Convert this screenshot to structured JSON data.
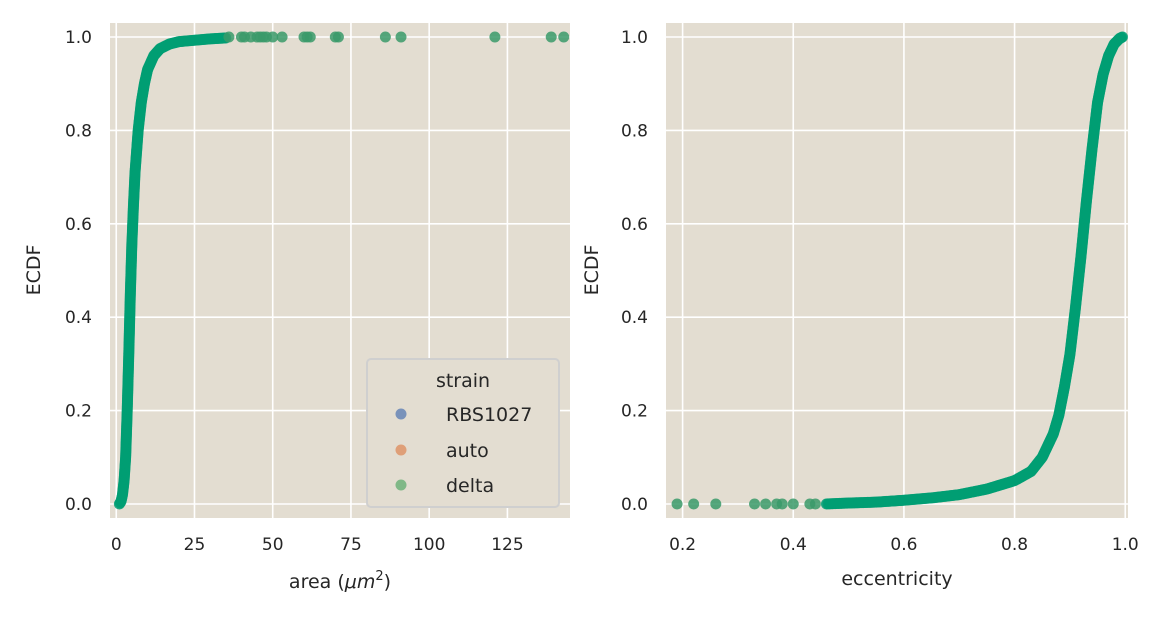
{
  "chart_data": [
    {
      "type": "scatter",
      "name": "area-ecdf",
      "xlabel": "area (",
      "xlabel_unit": "μm",
      "xlabel_sup": "2",
      "xlabel_close": ")",
      "ylabel": "ECDF",
      "xlim": [
        -2,
        145
      ],
      "ylim": [
        -0.03,
        1.03
      ],
      "xticks": [
        "0",
        "25",
        "50",
        "75",
        "100",
        "125"
      ],
      "xtick_values": [
        0,
        25,
        50,
        75,
        100,
        125
      ],
      "yticks": [
        "0.0",
        "0.2",
        "0.4",
        "0.6",
        "0.8",
        "1.0"
      ],
      "ytick_values": [
        0,
        0.2,
        0.4,
        0.6,
        0.8,
        1.0
      ],
      "grid": true,
      "legend": {
        "title": "strain",
        "placement": "lower-right",
        "entries": [
          {
            "label": "RBS1027",
            "color": "#4c72b0"
          },
          {
            "label": "auto",
            "color": "#dd8452"
          },
          {
            "label": "delta",
            "color": "#55a868"
          }
        ]
      },
      "curve": {
        "color": "#009e73",
        "points": [
          [
            1.0,
            0.0
          ],
          [
            1.5,
            0.005
          ],
          [
            2.0,
            0.02
          ],
          [
            2.5,
            0.05
          ],
          [
            3.0,
            0.1
          ],
          [
            3.5,
            0.2
          ],
          [
            4.0,
            0.32
          ],
          [
            4.5,
            0.45
          ],
          [
            5.0,
            0.56
          ],
          [
            5.5,
            0.64
          ],
          [
            6.0,
            0.71
          ],
          [
            7.0,
            0.8
          ],
          [
            8.0,
            0.86
          ],
          [
            9.0,
            0.9
          ],
          [
            10.0,
            0.93
          ],
          [
            12.0,
            0.96
          ],
          [
            14.0,
            0.975
          ],
          [
            17.0,
            0.985
          ],
          [
            20.0,
            0.99
          ],
          [
            25.0,
            0.993
          ],
          [
            30.0,
            0.996
          ],
          [
            35.0,
            0.998
          ]
        ]
      },
      "outliers": {
        "color": "#3a9a6a",
        "x": [
          36,
          40,
          41,
          43,
          45,
          46,
          47,
          48,
          50,
          53,
          60,
          61,
          62,
          70,
          71,
          86,
          91,
          121,
          139,
          143
        ],
        "y": 1.0
      }
    },
    {
      "type": "scatter",
      "name": "eccentricity-ecdf",
      "xlabel": "eccentricity",
      "ylabel": "ECDF",
      "xlim": [
        0.17,
        1.005
      ],
      "ylim": [
        -0.03,
        1.03
      ],
      "xticks": [
        "0.2",
        "0.4",
        "0.6",
        "0.8",
        "1.0"
      ],
      "xtick_values": [
        0.2,
        0.4,
        0.6,
        0.8,
        1.0
      ],
      "yticks": [
        "0.0",
        "0.2",
        "0.4",
        "0.6",
        "0.8",
        "1.0"
      ],
      "ytick_values": [
        0,
        0.2,
        0.4,
        0.6,
        0.8,
        1.0
      ],
      "grid": true,
      "curve": {
        "color": "#009e73",
        "points": [
          [
            0.46,
            0.0
          ],
          [
            0.5,
            0.002
          ],
          [
            0.55,
            0.004
          ],
          [
            0.6,
            0.008
          ],
          [
            0.65,
            0.013
          ],
          [
            0.7,
            0.02
          ],
          [
            0.75,
            0.032
          ],
          [
            0.8,
            0.05
          ],
          [
            0.83,
            0.07
          ],
          [
            0.85,
            0.1
          ],
          [
            0.87,
            0.15
          ],
          [
            0.88,
            0.19
          ],
          [
            0.89,
            0.25
          ],
          [
            0.9,
            0.32
          ],
          [
            0.91,
            0.42
          ],
          [
            0.92,
            0.53
          ],
          [
            0.93,
            0.65
          ],
          [
            0.94,
            0.76
          ],
          [
            0.95,
            0.86
          ],
          [
            0.96,
            0.92
          ],
          [
            0.97,
            0.96
          ],
          [
            0.98,
            0.985
          ],
          [
            0.99,
            0.997
          ],
          [
            0.995,
            1.0
          ]
        ]
      },
      "outliers": {
        "color": "#3a9a6a",
        "x": [
          0.19,
          0.22,
          0.26,
          0.33,
          0.35,
          0.37,
          0.38,
          0.4,
          0.43,
          0.44
        ],
        "y": 0.0
      }
    }
  ]
}
